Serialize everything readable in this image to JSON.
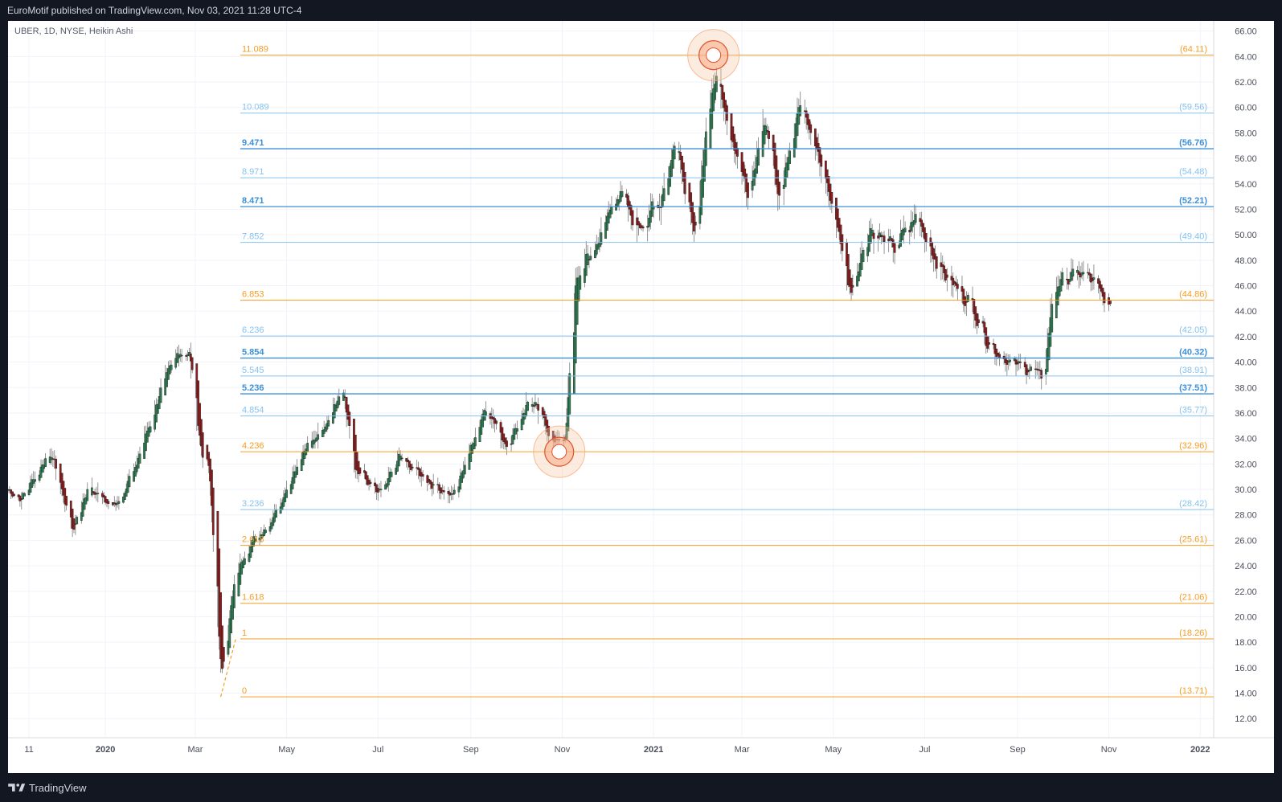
{
  "header": {
    "publisher_line": "EuroMotif published on TradingView.com, Nov 03, 2021 11:28 UTC-4"
  },
  "footer": {
    "brand": "TradingView",
    "logo_icon": "tradingview-logo-icon"
  },
  "chart_data": {
    "type": "candlestick",
    "title": "UBER, 1D, NYSE, Heikin Ashi",
    "y_axis": {
      "ylim": [
        10.5,
        66.8
      ],
      "position": "right",
      "tick_labels": [
        "66.00",
        "64.00",
        "62.00",
        "60.00",
        "58.00",
        "56.00",
        "54.00",
        "52.00",
        "50.00",
        "48.00",
        "46.00",
        "44.00",
        "42.00",
        "40.00",
        "38.00",
        "36.00",
        "34.00",
        "32.00",
        "30.00",
        "28.00",
        "26.00",
        "24.00",
        "22.00",
        "20.00",
        "18.00",
        "16.00",
        "14.00",
        "12.00"
      ]
    },
    "x_axis": {
      "xlim": [
        "2019-10-28",
        "2022-01-10"
      ],
      "tick_labels": [
        {
          "label": "11",
          "date": "2019-11-11",
          "bold": false
        },
        {
          "label": "2020",
          "date": "2020-01-01",
          "bold": true
        },
        {
          "label": "Mar",
          "date": "2020-03-01",
          "bold": false
        },
        {
          "label": "May",
          "date": "2020-05-01",
          "bold": false
        },
        {
          "label": "Jul",
          "date": "2020-07-01",
          "bold": false
        },
        {
          "label": "Sep",
          "date": "2020-09-01",
          "bold": false
        },
        {
          "label": "Nov",
          "date": "2020-11-01",
          "bold": false
        },
        {
          "label": "2021",
          "date": "2021-01-01",
          "bold": true
        },
        {
          "label": "Mar",
          "date": "2021-03-01",
          "bold": false
        },
        {
          "label": "May",
          "date": "2021-05-01",
          "bold": false
        },
        {
          "label": "Jul",
          "date": "2021-07-01",
          "bold": false
        },
        {
          "label": "Sep",
          "date": "2021-09-01",
          "bold": false
        },
        {
          "label": "Nov",
          "date": "2021-11-01",
          "bold": false
        },
        {
          "label": "2022",
          "date": "2022-01-01",
          "bold": true
        }
      ]
    },
    "price_anchors": [
      {
        "date": "2019-10-28",
        "close": 30.0
      },
      {
        "date": "2019-11-05",
        "close": 29.2
      },
      {
        "date": "2019-11-25",
        "close": 33.0
      },
      {
        "date": "2019-12-10",
        "close": 26.8
      },
      {
        "date": "2019-12-20",
        "close": 30.2
      },
      {
        "date": "2020-01-06",
        "close": 28.6
      },
      {
        "date": "2020-01-20",
        "close": 31.5
      },
      {
        "date": "2020-02-05",
        "close": 37.2
      },
      {
        "date": "2020-02-18",
        "close": 41.0
      },
      {
        "date": "2020-02-26",
        "close": 40.5
      },
      {
        "date": "2020-03-05",
        "close": 33.0
      },
      {
        "date": "2020-03-10",
        "close": 31.5
      },
      {
        "date": "2020-03-18",
        "close": 15.5
      },
      {
        "date": "2020-03-28",
        "close": 23.5
      },
      {
        "date": "2020-04-05",
        "close": 25.5
      },
      {
        "date": "2020-04-20",
        "close": 27.5
      },
      {
        "date": "2020-05-10",
        "close": 32.5
      },
      {
        "date": "2020-05-25",
        "close": 35.0
      },
      {
        "date": "2020-06-08",
        "close": 37.8
      },
      {
        "date": "2020-06-15",
        "close": 31.5
      },
      {
        "date": "2020-07-01",
        "close": 29.5
      },
      {
        "date": "2020-07-15",
        "close": 32.5
      },
      {
        "date": "2020-08-05",
        "close": 30.5
      },
      {
        "date": "2020-08-20",
        "close": 29.5
      },
      {
        "date": "2020-09-10",
        "close": 36.5
      },
      {
        "date": "2020-09-25",
        "close": 33.5
      },
      {
        "date": "2020-10-10",
        "close": 37.2
      },
      {
        "date": "2020-10-28",
        "close": 33.5
      },
      {
        "date": "2020-11-03",
        "close": 34.5
      },
      {
        "date": "2020-11-10",
        "close": 46.5
      },
      {
        "date": "2020-11-25",
        "close": 49.5
      },
      {
        "date": "2020-12-08",
        "close": 53.5
      },
      {
        "date": "2020-12-20",
        "close": 50.5
      },
      {
        "date": "2021-01-05",
        "close": 52.5
      },
      {
        "date": "2021-01-15",
        "close": 57.5
      },
      {
        "date": "2021-01-28",
        "close": 50.5
      },
      {
        "date": "2021-02-10",
        "close": 62.5
      },
      {
        "date": "2021-02-22",
        "close": 57.5
      },
      {
        "date": "2021-03-05",
        "close": 53.0
      },
      {
        "date": "2021-03-15",
        "close": 59.5
      },
      {
        "date": "2021-03-25",
        "close": 53.5
      },
      {
        "date": "2021-04-08",
        "close": 60.2
      },
      {
        "date": "2021-04-20",
        "close": 56.5
      },
      {
        "date": "2021-05-01",
        "close": 52.0
      },
      {
        "date": "2021-05-12",
        "close": 45.5
      },
      {
        "date": "2021-05-25",
        "close": 50.5
      },
      {
        "date": "2021-06-10",
        "close": 49.0
      },
      {
        "date": "2021-06-25",
        "close": 51.5
      },
      {
        "date": "2021-07-10",
        "close": 47.5
      },
      {
        "date": "2021-07-20",
        "close": 46.0
      },
      {
        "date": "2021-08-01",
        "close": 44.5
      },
      {
        "date": "2021-08-12",
        "close": 41.5
      },
      {
        "date": "2021-08-25",
        "close": 40.0
      },
      {
        "date": "2021-09-10",
        "close": 39.5
      },
      {
        "date": "2021-09-18",
        "close": 38.5
      },
      {
        "date": "2021-09-25",
        "close": 46.0
      },
      {
        "date": "2021-10-10",
        "close": 47.0
      },
      {
        "date": "2021-10-20",
        "close": 46.5
      },
      {
        "date": "2021-11-02",
        "close": 44.0
      }
    ],
    "fib_levels": [
      {
        "ratio": "0",
        "price": "(13.71)",
        "value": 13.71,
        "color": "#f59d23",
        "bold": false
      },
      {
        "ratio": "1",
        "price": "(18.26)",
        "value": 18.26,
        "color": "#f59d23",
        "bold": false
      },
      {
        "ratio": "1.618",
        "price": "(21.06)",
        "value": 21.06,
        "color": "#f59d23",
        "bold": false
      },
      {
        "ratio": "2.618",
        "price": "(25.61)",
        "value": 25.61,
        "color": "#f59d23",
        "bold": false
      },
      {
        "ratio": "3.236",
        "price": "(28.42)",
        "value": 28.42,
        "color": "#86c2f0",
        "bold": false
      },
      {
        "ratio": "4.236",
        "price": "(32.96)",
        "value": 32.96,
        "color": "#f59d23",
        "bold": false
      },
      {
        "ratio": "4.854",
        "price": "(35.77)",
        "value": 35.77,
        "color": "#86c2f0",
        "bold": false
      },
      {
        "ratio": "5.236",
        "price": "(37.51)",
        "value": 37.51,
        "color": "#3d8fd6",
        "bold": true
      },
      {
        "ratio": "5.545",
        "price": "(38.91)",
        "value": 38.91,
        "color": "#86c2f0",
        "bold": false
      },
      {
        "ratio": "5.854",
        "price": "(40.32)",
        "value": 40.32,
        "color": "#3d8fd6",
        "bold": true
      },
      {
        "ratio": "6.236",
        "price": "(42.05)",
        "value": 42.05,
        "color": "#86c2f0",
        "bold": false
      },
      {
        "ratio": "6.853",
        "price": "(44.86)",
        "value": 44.86,
        "color": "#f59d23",
        "bold": false
      },
      {
        "ratio": "7.852",
        "price": "(49.40)",
        "value": 49.4,
        "color": "#86c2f0",
        "bold": false
      },
      {
        "ratio": "8.471",
        "price": "(52.21)",
        "value": 52.21,
        "color": "#3d8fd6",
        "bold": true
      },
      {
        "ratio": "8.971",
        "price": "(54.48)",
        "value": 54.48,
        "color": "#86c2f0",
        "bold": false
      },
      {
        "ratio": "9.471",
        "price": "(56.76)",
        "value": 56.76,
        "color": "#3d8fd6",
        "bold": true
      },
      {
        "ratio": "10.089",
        "price": "(59.56)",
        "value": 59.56,
        "color": "#86c2f0",
        "bold": false
      },
      {
        "ratio": "11.089",
        "price": "(64.11)",
        "value": 64.11,
        "color": "#f59d23",
        "bold": false
      }
    ],
    "highlight_circles": [
      {
        "date": "2021-02-10",
        "value": 64.11
      },
      {
        "date": "2020-10-30",
        "value": 32.96
      }
    ],
    "colors": {
      "up": "#2e7d52",
      "down": "#8b1e1e",
      "wick": "#7a7a7a",
      "grid": "#f0f3fa",
      "axis_text": "#4a4e59",
      "fib_trend": "#f59d23"
    },
    "grid": true,
    "legend": "none"
  }
}
